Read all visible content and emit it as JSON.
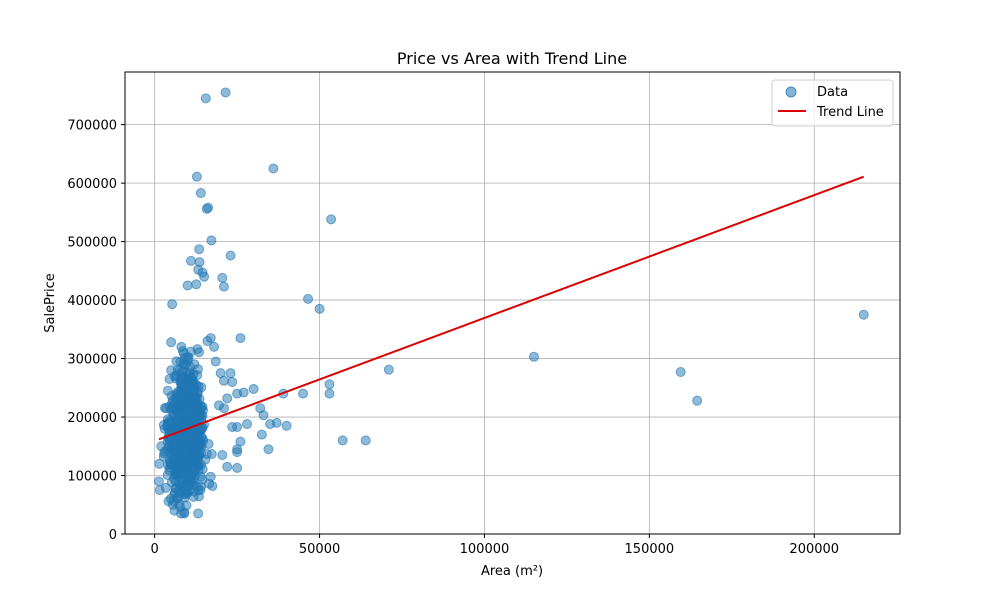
{
  "chart_data": {
    "type": "scatter",
    "title": "Price vs Area with Trend Line",
    "xlabel": "Area (m²)",
    "ylabel": "SalePrice",
    "xlim": [
      -9000,
      226000
    ],
    "ylim": [
      0,
      790000
    ],
    "x_ticks": [
      0,
      50000,
      100000,
      150000,
      200000
    ],
    "x_tick_labels": [
      "0",
      "50000",
      "100000",
      "150000",
      "200000"
    ],
    "y_ticks": [
      0,
      100000,
      200000,
      300000,
      400000,
      500000,
      600000,
      700000
    ],
    "y_tick_labels": [
      "0",
      "100000",
      "200000",
      "300000",
      "400000",
      "500000",
      "600000",
      "700000"
    ],
    "grid": true,
    "legend_position": "top-right",
    "series": [
      {
        "name": "Data",
        "kind": "scatter",
        "color": "#1f77b4",
        "cluster": {
          "x_center": 9500,
          "x_spread": 3500,
          "y_center": 175000,
          "y_spread": 70000,
          "count": 900,
          "x_min": 1300,
          "x_max": 25000,
          "y_min": 35000,
          "y_max": 480000
        },
        "points": [
          [
            15500,
            745000
          ],
          [
            21500,
            755000
          ],
          [
            36000,
            625000
          ],
          [
            12800,
            611000
          ],
          [
            14000,
            583000
          ],
          [
            15800,
            556000
          ],
          [
            16200,
            558000
          ],
          [
            53500,
            538000
          ],
          [
            17200,
            502000
          ],
          [
            13500,
            487000
          ],
          [
            23000,
            476000
          ],
          [
            11000,
            467000
          ],
          [
            13600,
            465000
          ],
          [
            13200,
            452000
          ],
          [
            14500,
            447000
          ],
          [
            15000,
            440000
          ],
          [
            20500,
            438000
          ],
          [
            12600,
            427000
          ],
          [
            10000,
            425000
          ],
          [
            21000,
            423000
          ],
          [
            46500,
            402000
          ],
          [
            50000,
            385000
          ],
          [
            5300,
            393000
          ],
          [
            16000,
            330000
          ],
          [
            17000,
            335000
          ],
          [
            26000,
            335000
          ],
          [
            5000,
            328000
          ],
          [
            18000,
            320000
          ],
          [
            18500,
            295000
          ],
          [
            20000,
            275000
          ],
          [
            23000,
            275000
          ],
          [
            21000,
            262000
          ],
          [
            23500,
            260000
          ],
          [
            25000,
            240000
          ],
          [
            27000,
            242000
          ],
          [
            30000,
            248000
          ],
          [
            22000,
            232000
          ],
          [
            19500,
            220000
          ],
          [
            21000,
            215000
          ],
          [
            32000,
            215000
          ],
          [
            33000,
            203000
          ],
          [
            28000,
            188000
          ],
          [
            35000,
            188000
          ],
          [
            37000,
            190000
          ],
          [
            40000,
            185000
          ],
          [
            34500,
            145000
          ],
          [
            23500,
            183000
          ],
          [
            25000,
            183000
          ],
          [
            39000,
            240000
          ],
          [
            45000,
            240000
          ],
          [
            53000,
            256000
          ],
          [
            53000,
            240000
          ],
          [
            71000,
            281000
          ],
          [
            115000,
            303000
          ],
          [
            159500,
            277000
          ],
          [
            164500,
            228000
          ],
          [
            215000,
            375000
          ],
          [
            57000,
            160000
          ],
          [
            64000,
            160000
          ],
          [
            32500,
            170000
          ],
          [
            25000,
            145000
          ],
          [
            25000,
            140000
          ],
          [
            26000,
            158000
          ],
          [
            20500,
            135000
          ],
          [
            22000,
            115000
          ],
          [
            25000,
            113000
          ],
          [
            17000,
            98000
          ],
          [
            17500,
            82000
          ],
          [
            16500,
            86000
          ],
          [
            8000,
            35000
          ],
          [
            9000,
            37000
          ],
          [
            6000,
            40000
          ],
          [
            1500,
            75000
          ],
          [
            1300,
            90000
          ],
          [
            1400,
            120000
          ],
          [
            2000,
            150000
          ],
          [
            3000,
            180000
          ],
          [
            3500,
            215000
          ],
          [
            4000,
            245000
          ],
          [
            4500,
            265000
          ],
          [
            5000,
            280000
          ],
          [
            6000,
            270000
          ],
          [
            4200,
            56000
          ],
          [
            5500,
            50000
          ],
          [
            7000,
            62000
          ]
        ]
      },
      {
        "name": "Trend Line",
        "kind": "line",
        "color": "#dd0000",
        "x": [
          1300,
          215000
        ],
        "y": [
          162000,
          611000
        ]
      }
    ]
  }
}
